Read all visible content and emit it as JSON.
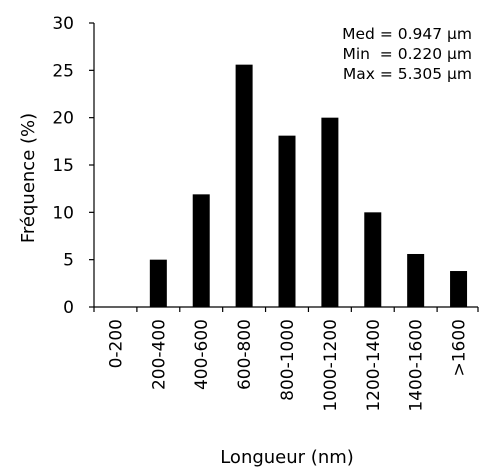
{
  "chart_data": {
    "type": "bar",
    "title": "",
    "xlabel": "Longueur (nm)",
    "ylabel": "Fréquence (%)",
    "ylim": [
      0,
      30
    ],
    "yticks": [
      0,
      5,
      10,
      15,
      20,
      25,
      30
    ],
    "categories": [
      "0-200",
      "200-400",
      "400-600",
      "600-800",
      "800-1000",
      "1000-1200",
      "1200-1400",
      "1400-1600",
      ">1600"
    ],
    "values": [
      0,
      5.0,
      11.9,
      25.6,
      18.1,
      20.0,
      10.0,
      5.6,
      3.8
    ],
    "bar_color": "#000000",
    "grid": false,
    "legend": "none",
    "annotations": [
      "Med = 0.947 µm",
      "Min  = 0.220 µm",
      "Max = 5.305 µm"
    ]
  }
}
